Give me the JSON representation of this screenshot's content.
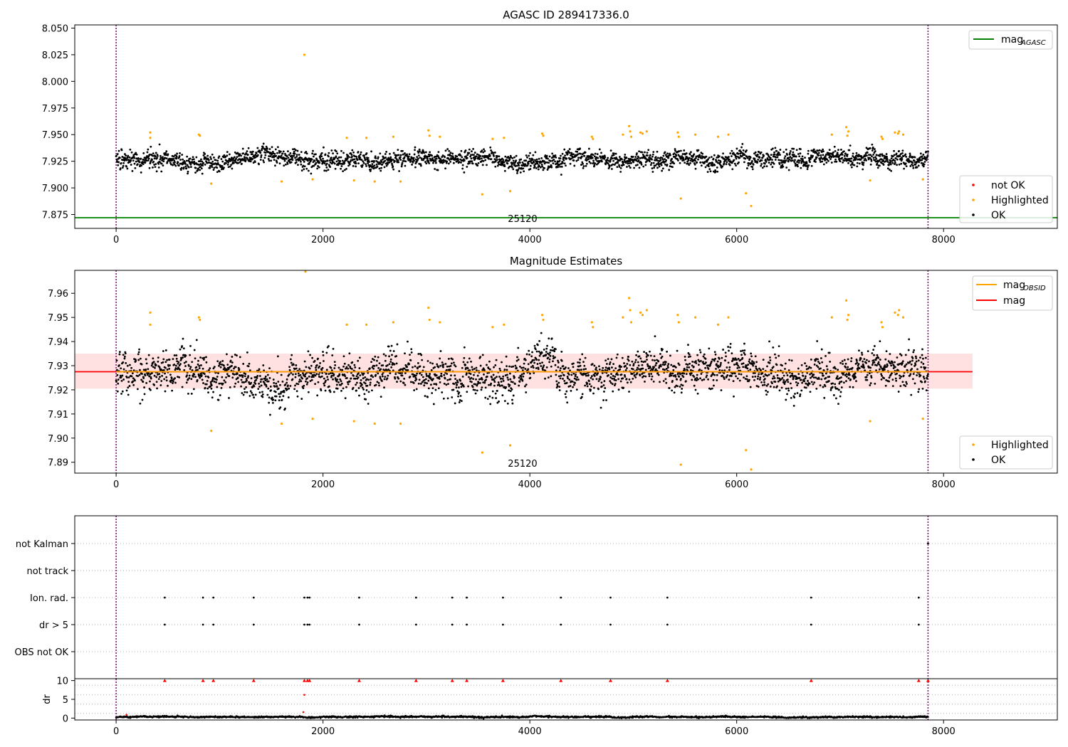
{
  "chart_data": [
    {
      "type": "scatter",
      "title": "AGASC ID 289417336.0",
      "xlim": [
        -400,
        9100
      ],
      "ylim": [
        7.862,
        8.053
      ],
      "xticks": [
        0,
        2000,
        4000,
        6000,
        8000
      ],
      "yticks": [
        7.875,
        7.9,
        7.925,
        7.95,
        7.975,
        8.0,
        8.025,
        8.05
      ],
      "ytick_labels": [
        "7.875",
        "7.900",
        "7.925",
        "7.950",
        "7.975",
        "8.000",
        "8.025",
        "8.050"
      ],
      "obsid_label": "25120",
      "obsid_label_x": 3930,
      "obs_boundaries": [
        0,
        7850
      ],
      "reference_lines": [
        {
          "name": "mag_AGASC",
          "y": 7.872,
          "color": "#008000"
        }
      ],
      "ok_band": {
        "center": 7.927,
        "spread": 0.0095,
        "x_range": [
          0,
          7850
        ]
      },
      "highlighted": [
        [
          330,
          7.952
        ],
        [
          330,
          7.947
        ],
        [
          800,
          7.95
        ],
        [
          810,
          7.949
        ],
        [
          920,
          7.904
        ],
        [
          1600,
          7.906
        ],
        [
          1820,
          8.025
        ],
        [
          1900,
          7.908
        ],
        [
          2230,
          7.947
        ],
        [
          2300,
          7.907
        ],
        [
          2420,
          7.947
        ],
        [
          2500,
          7.906
        ],
        [
          2680,
          7.948
        ],
        [
          2750,
          7.906
        ],
        [
          3020,
          7.954
        ],
        [
          3030,
          7.949
        ],
        [
          3130,
          7.948
        ],
        [
          3540,
          7.894
        ],
        [
          3640,
          7.946
        ],
        [
          3750,
          7.947
        ],
        [
          3810,
          7.897
        ],
        [
          4120,
          7.951
        ],
        [
          4130,
          7.949
        ],
        [
          4600,
          7.948
        ],
        [
          4610,
          7.946
        ],
        [
          4900,
          7.95
        ],
        [
          4960,
          7.958
        ],
        [
          4970,
          7.953
        ],
        [
          4980,
          7.948
        ],
        [
          5070,
          7.952
        ],
        [
          5090,
          7.951
        ],
        [
          5130,
          7.953
        ],
        [
          5430,
          7.952
        ],
        [
          5440,
          7.948
        ],
        [
          5460,
          7.89
        ],
        [
          5600,
          7.95
        ],
        [
          5820,
          7.948
        ],
        [
          5920,
          7.95
        ],
        [
          6090,
          7.895
        ],
        [
          6140,
          7.883
        ],
        [
          6920,
          7.95
        ],
        [
          7060,
          7.957
        ],
        [
          7080,
          7.953
        ],
        [
          7070,
          7.949
        ],
        [
          7290,
          7.907
        ],
        [
          7400,
          7.948
        ],
        [
          7410,
          7.946
        ],
        [
          7530,
          7.952
        ],
        [
          7560,
          7.951
        ],
        [
          7570,
          7.953
        ],
        [
          7610,
          7.95
        ],
        [
          7800,
          7.908
        ]
      ],
      "legend_upper": [
        {
          "label": "mag",
          "sub": "AGASC",
          "color": "#008000",
          "marker": "line"
        }
      ],
      "legend_lower": [
        {
          "label": "not OK",
          "color": "#ff0000",
          "marker": "dot"
        },
        {
          "label": "Highlighted",
          "color": "#ffa500",
          "marker": "dot"
        },
        {
          "label": "OK",
          "color": "#000000",
          "marker": "dot"
        }
      ]
    },
    {
      "type": "scatter",
      "title": "Magnitude Estimates",
      "xlim": [
        -400,
        9100
      ],
      "ylim": [
        7.8855,
        7.9695
      ],
      "xticks": [
        0,
        2000,
        4000,
        6000,
        8000
      ],
      "yticks": [
        7.89,
        7.9,
        7.91,
        7.92,
        7.93,
        7.94,
        7.95,
        7.96
      ],
      "ytick_labels": [
        "7.89",
        "7.90",
        "7.91",
        "7.92",
        "7.93",
        "7.94",
        "7.95",
        "7.96"
      ],
      "obsid_label": "25120",
      "obsid_label_x": 3930,
      "obs_boundaries": [
        0,
        7850
      ],
      "shaded_band": {
        "y_range": [
          7.9205,
          7.935
        ],
        "x_range": [
          -400,
          8280
        ],
        "color": "#ffb3b3"
      },
      "reference_lines": [
        {
          "name": "mag",
          "y": 7.9275,
          "x_range": [
            -400,
            8280
          ],
          "color": "#ff0000"
        },
        {
          "name": "mag_OBSID",
          "y": 7.9275,
          "x_range": [
            0,
            7850
          ],
          "color": "#ffa500"
        }
      ],
      "ok_band": {
        "center": 7.927,
        "spread": 0.0095,
        "x_range": [
          0,
          7850
        ]
      },
      "highlighted": [
        [
          1830,
          7.969
        ],
        [
          330,
          7.952
        ],
        [
          330,
          7.947
        ],
        [
          800,
          7.95
        ],
        [
          810,
          7.949
        ],
        [
          920,
          7.903
        ],
        [
          1600,
          7.906
        ],
        [
          1900,
          7.908
        ],
        [
          2230,
          7.947
        ],
        [
          2300,
          7.907
        ],
        [
          2420,
          7.947
        ],
        [
          2500,
          7.906
        ],
        [
          2680,
          7.948
        ],
        [
          2750,
          7.906
        ],
        [
          3020,
          7.954
        ],
        [
          3030,
          7.949
        ],
        [
          3130,
          7.948
        ],
        [
          3540,
          7.894
        ],
        [
          3640,
          7.946
        ],
        [
          3750,
          7.947
        ],
        [
          3810,
          7.897
        ],
        [
          4120,
          7.951
        ],
        [
          4130,
          7.949
        ],
        [
          4600,
          7.948
        ],
        [
          4610,
          7.946
        ],
        [
          4900,
          7.95
        ],
        [
          4960,
          7.958
        ],
        [
          4970,
          7.953
        ],
        [
          4980,
          7.948
        ],
        [
          5070,
          7.952
        ],
        [
          5090,
          7.951
        ],
        [
          5130,
          7.953
        ],
        [
          5430,
          7.951
        ],
        [
          5440,
          7.948
        ],
        [
          5460,
          7.889
        ],
        [
          5600,
          7.95
        ],
        [
          5820,
          7.947
        ],
        [
          5920,
          7.95
        ],
        [
          6090,
          7.895
        ],
        [
          6140,
          7.887
        ],
        [
          6920,
          7.95
        ],
        [
          7060,
          7.957
        ],
        [
          7080,
          7.951
        ],
        [
          7070,
          7.949
        ],
        [
          7290,
          7.907
        ],
        [
          7400,
          7.948
        ],
        [
          7410,
          7.946
        ],
        [
          7530,
          7.952
        ],
        [
          7560,
          7.951
        ],
        [
          7570,
          7.953
        ],
        [
          7610,
          7.95
        ],
        [
          7800,
          7.908
        ]
      ],
      "legend_upper": [
        {
          "label": "mag",
          "sub": "OBSID",
          "color": "#ffa500",
          "marker": "line"
        },
        {
          "label": "mag",
          "sub": "",
          "color": "#ff0000",
          "marker": "line"
        }
      ],
      "legend_lower": [
        {
          "label": "Highlighted",
          "color": "#ffa500",
          "marker": "dot"
        },
        {
          "label": "OK",
          "color": "#000000",
          "marker": "dot"
        }
      ]
    },
    {
      "type": "scatter",
      "title": "",
      "xlim": [
        -400,
        9100
      ],
      "flag_categories": [
        "not Kalman",
        "not track",
        "Ion. rad.",
        "dr > 5",
        "OBS not OK"
      ],
      "flag_points": {
        "not Kalman": [
          7850
        ],
        "not track": [],
        "Ion. rad.": [
          470,
          840,
          940,
          1330,
          1820,
          1850,
          1870,
          2350,
          2900,
          3250,
          3390,
          3740,
          4300,
          4780,
          5330,
          6720,
          7760
        ],
        "dr > 5": [
          470,
          840,
          940,
          1330,
          1820,
          1850,
          1870,
          2350,
          2900,
          3250,
          3390,
          3740,
          4300,
          4780,
          5330,
          6720,
          7760
        ],
        "OBS not OK": []
      },
      "obs_boundaries": [
        0,
        7850
      ]
    },
    {
      "type": "scatter",
      "title": "",
      "ylabel": "dr",
      "xlim": [
        -400,
        9100
      ],
      "ylim": [
        -0.5,
        10.5
      ],
      "xticks": [
        0,
        2000,
        4000,
        6000,
        8000
      ],
      "yticks": [
        0,
        5,
        10
      ],
      "ytick_labels": [
        "0",
        "5",
        "10"
      ],
      "obs_boundaries": [
        0,
        7850
      ],
      "capped_points": [
        470,
        840,
        940,
        1330,
        1820,
        1850,
        1870,
        2350,
        2900,
        3250,
        3390,
        3740,
        4300,
        4780,
        5330,
        6720,
        7760,
        7850
      ],
      "outliers": [
        [
          1820,
          6.2
        ],
        [
          1810,
          1.6
        ],
        [
          100,
          0.9
        ]
      ],
      "ok_band": {
        "center": 0.3,
        "spread": 0.25,
        "x_range": [
          0,
          7850
        ]
      }
    }
  ],
  "colors": {
    "ok": "#000000",
    "highlighted": "#ffa500",
    "not_ok": "#ff0000",
    "boundary": "#800080",
    "grid": "#b0b0b0"
  }
}
